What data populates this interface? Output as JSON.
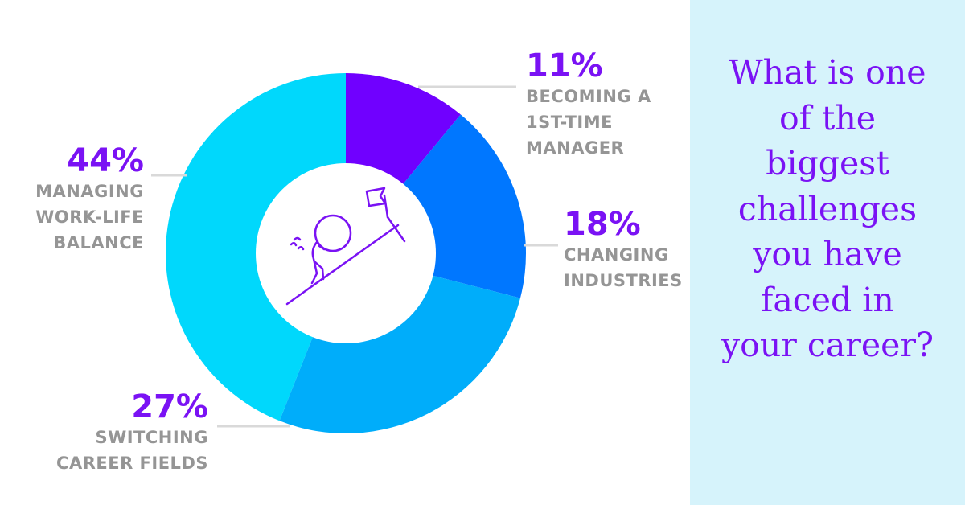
{
  "chart_data": {
    "type": "pie",
    "donut": true,
    "categories": [
      "BECOMING A\n1ST-TIME\nMANAGER",
      "CHANGING\nINDUSTRIES",
      "SWITCHING\nCAREER FIELDS",
      "MANAGING\nWORK-LIFE\nBALANCE"
    ],
    "values": [
      11,
      18,
      27,
      44
    ],
    "labels": [
      "11%",
      "18%",
      "27%",
      "44%"
    ],
    "colors": [
      "#7000ff",
      "#0077ff",
      "#00adfa",
      "#00d8fc"
    ],
    "center_icon": "person-pushing-boulder-uphill-icon",
    "leader_line_color": "#d9d9d9"
  },
  "question": "What is one\nof the\nbiggest\nchallenges\nyou have\nfaced in\nyour career?"
}
